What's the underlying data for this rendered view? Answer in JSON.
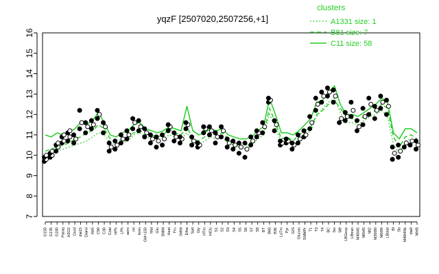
{
  "chart_data": {
    "type": "line",
    "title": "yqzF [2507020,2507256,+1]",
    "xlabel": "",
    "ylabel": "",
    "ylim": [
      7,
      16
    ],
    "yticks": [
      7,
      8,
      9,
      10,
      11,
      12,
      13,
      14,
      15,
      16
    ],
    "grid": false,
    "legend_placement": "top-right",
    "legend_title": "clusters",
    "colors": {
      "points": "#000000",
      "series": "#22cc22"
    },
    "x_labels": [
      "G150",
      "G135",
      "G180",
      "Paraq",
      "H2O2",
      "Oxctl",
      "dia15",
      "Diami",
      "dia5",
      "C90",
      "C30",
      "Cold",
      "HPh",
      "LPh",
      "aero",
      "nit",
      "ferm",
      "GM+150",
      "Mal",
      "Glu",
      "BMM",
      "Heat",
      "Fru",
      "SMM",
      "Etha",
      "Salt",
      "Gly",
      "HTm",
      "HiOs",
      "S1",
      "S2",
      "S3",
      "S4",
      "S5",
      "S6",
      "S7",
      "S8",
      "BT",
      "B60",
      "B36",
      "LoTm",
      "Pyr",
      "GIS",
      "Glucon",
      "SMMPr",
      "T1",
      "T3",
      "T4",
      "BC",
      "Sw",
      "M9",
      "LBGexp",
      "LBtran",
      "M40t45",
      "M0t45",
      "Mt2",
      "M20t90",
      "M0t90",
      "LBstat",
      "Bl",
      "Sb",
      "M40t45b",
      "dia0",
      "MHB"
    ],
    "series": [
      {
        "name": "A1331 size: 1",
        "style": "dotted",
        "values": [
          10.0,
          10.1,
          10.2,
          10.3,
          10.4,
          10.5,
          10.6,
          10.7,
          10.9,
          11.1,
          11.0,
          10.6,
          10.5,
          10.6,
          10.7,
          11.0,
          11.1,
          10.9,
          10.8,
          10.7,
          10.8,
          11.0,
          10.9,
          10.8,
          11.1,
          10.6,
          10.5,
          10.7,
          10.9,
          10.8,
          10.9,
          10.6,
          10.5,
          10.4,
          10.3,
          10.5,
          10.8,
          11.0,
          12.0,
          11.4,
          10.6,
          10.7,
          10.5,
          10.8,
          11.0,
          11.2,
          11.9,
          12.3,
          12.6,
          12.8,
          12.1,
          11.6,
          11.6,
          11.5,
          11.7,
          11.9,
          12.0,
          12.2,
          11.9,
          10.5,
          10.1,
          10.7,
          10.8,
          10.6
        ]
      },
      {
        "name": "B81 size: 7",
        "style": "dashed",
        "values": [
          10.2,
          10.3,
          10.4,
          10.5,
          10.6,
          10.8,
          10.9,
          11.1,
          11.2,
          11.5,
          11.3,
          10.8,
          10.7,
          10.8,
          10.9,
          11.1,
          11.2,
          11.1,
          11.0,
          10.9,
          11.0,
          11.3,
          11.1,
          11.0,
          11.4,
          10.8,
          10.7,
          10.9,
          11.1,
          11.0,
          11.1,
          10.8,
          10.7,
          10.6,
          10.5,
          10.7,
          11.0,
          11.1,
          12.3,
          11.6,
          10.8,
          10.9,
          10.7,
          11.0,
          11.2,
          11.4,
          12.0,
          12.2,
          12.5,
          12.7,
          12.3,
          11.9,
          11.8,
          11.7,
          11.9,
          12.1,
          12.2,
          12.5,
          12.3,
          10.9,
          10.4,
          10.9,
          11.0,
          10.8
        ]
      },
      {
        "name": "C11 size: 58",
        "style": "solid",
        "values": [
          11.0,
          10.9,
          11.1,
          11.0,
          11.1,
          11.3,
          11.6,
          11.5,
          11.7,
          12.1,
          11.6,
          11.0,
          10.9,
          11.1,
          11.2,
          11.5,
          11.6,
          11.3,
          11.2,
          11.1,
          11.2,
          11.4,
          11.3,
          11.2,
          12.4,
          11.2,
          11.0,
          11.1,
          11.3,
          11.2,
          11.3,
          11.0,
          10.9,
          10.8,
          10.8,
          10.9,
          11.2,
          11.4,
          12.8,
          12.0,
          11.1,
          11.1,
          11.0,
          11.2,
          11.5,
          11.8,
          12.6,
          12.7,
          13.1,
          13.4,
          12.5,
          12.0,
          12.0,
          11.9,
          12.1,
          12.3,
          12.5,
          12.8,
          12.6,
          11.1,
          10.8,
          11.3,
          11.3,
          11.1
        ]
      }
    ],
    "points": [
      {
        "x": "G150",
        "y": [
          9.7,
          9.8,
          9.9,
          10.0
        ]
      },
      {
        "x": "G135",
        "y": [
          9.9,
          10.0,
          10.1,
          10.2
        ]
      },
      {
        "x": "G180",
        "y": [
          10.2,
          10.4,
          10.5,
          10.6
        ]
      },
      {
        "x": "Paraq",
        "y": [
          10.6,
          10.7,
          10.9,
          11.0
        ]
      },
      {
        "x": "H2O2",
        "y": [
          10.7,
          10.9,
          11.1,
          11.2
        ]
      },
      {
        "x": "Oxctl",
        "y": [
          10.6,
          10.8,
          11.0
        ]
      },
      {
        "x": "dia15",
        "y": [
          11.3,
          11.6,
          12.2
        ]
      },
      {
        "x": "Diami",
        "y": [
          11.1,
          11.4,
          11.6
        ]
      },
      {
        "x": "dia5",
        "y": [
          11.3,
          11.5,
          11.7
        ]
      },
      {
        "x": "C90",
        "y": [
          11.8,
          12.0,
          12.2
        ]
      },
      {
        "x": "C30",
        "y": [
          11.1,
          11.4,
          11.6
        ]
      },
      {
        "x": "Cold",
        "y": [
          10.2,
          10.4,
          10.6
        ]
      },
      {
        "x": "HPh",
        "y": [
          10.3,
          10.5,
          10.7
        ]
      },
      {
        "x": "LPh",
        "y": [
          10.6,
          10.8,
          11.0
        ]
      },
      {
        "x": "aero",
        "y": [
          10.8,
          11.0,
          11.2
        ]
      },
      {
        "x": "nit",
        "y": [
          11.3,
          11.6,
          11.8
        ]
      },
      {
        "x": "ferm",
        "y": [
          11.2,
          11.4,
          11.7
        ]
      },
      {
        "x": "GM+150",
        "y": [
          10.9,
          11.1,
          11.3
        ]
      },
      {
        "x": "Mal",
        "y": [
          10.6,
          10.8,
          11.0
        ]
      },
      {
        "x": "Glu",
        "y": [
          10.4,
          10.7,
          10.9
        ]
      },
      {
        "x": "BMM",
        "y": [
          10.5,
          10.8,
          11.0
        ]
      },
      {
        "x": "Heat",
        "y": [
          11.2,
          11.4,
          11.5
        ]
      },
      {
        "x": "Fru",
        "y": [
          10.7,
          10.9,
          11.1
        ]
      },
      {
        "x": "SMM",
        "y": [
          10.6,
          10.8,
          10.9
        ]
      },
      {
        "x": "Etha",
        "y": [
          11.3,
          11.5,
          11.6
        ]
      },
      {
        "x": "Salt",
        "y": [
          10.5,
          10.7,
          10.9
        ]
      },
      {
        "x": "Gly",
        "y": [
          10.4,
          10.5,
          10.6
        ]
      },
      {
        "x": "HTm",
        "y": [
          11.1,
          11.3,
          11.4
        ]
      },
      {
        "x": "HiOs",
        "y": [
          11.0,
          11.2,
          11.4
        ]
      },
      {
        "x": "S1",
        "y": [
          10.6,
          10.9,
          11.1
        ]
      },
      {
        "x": "S2",
        "y": [
          10.9,
          11.2,
          11.4
        ]
      },
      {
        "x": "S3",
        "y": [
          10.4,
          10.6,
          10.8
        ]
      },
      {
        "x": "S4",
        "y": [
          10.3,
          10.5,
          10.7
        ]
      },
      {
        "x": "S5",
        "y": [
          10.1,
          10.4,
          10.6
        ]
      },
      {
        "x": "S6",
        "y": [
          9.9,
          10.3,
          10.6
        ]
      },
      {
        "x": "S7",
        "y": [
          10.5,
          10.7,
          10.9
        ]
      },
      {
        "x": "S8",
        "y": [
          10.9,
          11.1,
          11.2
        ]
      },
      {
        "x": "BT",
        "y": [
          11.1,
          11.4,
          11.6
        ]
      },
      {
        "x": "B60",
        "y": [
          12.6,
          12.7,
          12.8
        ]
      },
      {
        "x": "B36",
        "y": [
          11.2,
          11.5,
          11.7
        ]
      },
      {
        "x": "LoTm",
        "y": [
          10.5,
          10.6,
          10.7
        ]
      },
      {
        "x": "Pyr",
        "y": [
          10.6,
          10.7,
          10.8
        ]
      },
      {
        "x": "GIS",
        "y": [
          10.3,
          10.5,
          10.6
        ]
      },
      {
        "x": "Glucon",
        "y": [
          10.6,
          10.8,
          11.0
        ]
      },
      {
        "x": "SMMPr",
        "y": [
          10.9,
          11.0,
          11.2
        ]
      },
      {
        "x": "T1",
        "y": [
          11.3,
          11.6,
          11.9
        ]
      },
      {
        "x": "T3",
        "y": [
          12.2,
          12.5,
          12.8
        ]
      },
      {
        "x": "T4",
        "y": [
          12.6,
          12.9,
          13.1
        ]
      },
      {
        "x": "BC",
        "y": [
          12.9,
          13.1,
          13.3
        ]
      },
      {
        "x": "Sw",
        "y": [
          12.6,
          12.9,
          13.2
        ]
      },
      {
        "x": "M9",
        "y": [
          11.6,
          11.8
        ]
      },
      {
        "x": "LBGexp",
        "y": [
          11.7,
          11.9,
          12.1
        ]
      },
      {
        "x": "LBtran",
        "y": [
          11.9,
          12.2,
          12.6
        ]
      },
      {
        "x": "M40t45",
        "y": [
          11.2,
          11.4,
          11.7
        ]
      },
      {
        "x": "M0t45",
        "y": [
          11.5,
          11.9,
          12.3
        ]
      },
      {
        "x": "Mt2",
        "y": [
          12.0,
          12.5,
          12.8
        ]
      },
      {
        "x": "M20t90",
        "y": [
          11.8,
          12.2,
          12.4
        ]
      },
      {
        "x": "M0t90",
        "y": [
          12.3,
          12.6,
          12.9
        ]
      },
      {
        "x": "LBstat",
        "y": [
          12.0,
          12.4,
          12.7
        ]
      },
      {
        "x": "Bl",
        "y": [
          9.8,
          10.1,
          10.4
        ]
      },
      {
        "x": "Sb",
        "y": [
          9.9,
          10.2,
          10.5
        ]
      },
      {
        "x": "M40t45b",
        "y": [
          10.4,
          10.6
        ]
      },
      {
        "x": "dia0",
        "y": [
          10.5,
          10.7
        ]
      },
      {
        "x": "MHB",
        "y": [
          10.3,
          10.5,
          10.7
        ]
      }
    ]
  }
}
